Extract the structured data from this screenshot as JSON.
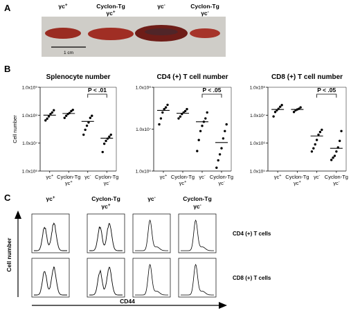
{
  "panels": {
    "a": "A",
    "b": "B",
    "c": "C"
  },
  "panel_a": {
    "labels": [
      {
        "line1": "γc",
        "sup1": "+",
        "line2": "",
        "sup2": ""
      },
      {
        "line1": "Cyclon-Tg",
        "sup1": "",
        "line2": "γc",
        "sup2": "+"
      },
      {
        "line1": "γc",
        "sup1": "-",
        "line2": "",
        "sup2": ""
      },
      {
        "line1": "Cyclon-Tg",
        "sup1": "",
        "line2": "γc",
        "sup2": "-"
      }
    ],
    "scale_bar": "1 cm"
  },
  "group_labels": [
    {
      "line1": "γc",
      "sup1": "+",
      "line2": "",
      "sup2": ""
    },
    {
      "line1": "Cyclon-Tg",
      "sup1": "",
      "line2": "γc",
      "sup2": "+"
    },
    {
      "line1": "γc",
      "sup1": "-",
      "line2": "",
      "sup2": ""
    },
    {
      "line1": "Cyclon-Tg",
      "sup1": "",
      "line2": "γc",
      "sup2": "-"
    }
  ],
  "chart_data": [
    {
      "type": "scatter",
      "title": "Splenocyte number",
      "ylabel": "Cell number",
      "yscale": "log",
      "ylim": [
        1000000,
        1000000000
      ],
      "yticks": [
        "1.0x10⁶",
        "1.0x10⁷",
        "1.0x10⁸",
        "1.0x10⁹"
      ],
      "categories": [
        "γc+",
        "Cyclon-Tg γc+",
        "γc-",
        "Cyclon-Tg γc-"
      ],
      "points": [
        [
          65000000,
          75000000,
          90000000,
          110000000,
          125000000,
          150000000
        ],
        [
          80000000,
          95000000,
          110000000,
          120000000,
          140000000,
          155000000
        ],
        [
          20000000,
          30000000,
          42000000,
          55000000,
          80000000,
          95000000
        ],
        [
          4800000,
          9500000,
          12000000,
          14500000,
          17000000,
          20000000
        ]
      ],
      "medians": [
        100000000,
        115000000,
        60000000,
        15000000
      ],
      "significance": {
        "label": "P < .01",
        "groups": [
          2,
          3
        ]
      }
    },
    {
      "type": "scatter",
      "title": "CD4 (+) T cell number",
      "yscale": "log",
      "ylim": [
        1000000,
        100000000
      ],
      "yticks": [
        "1.0x10⁶",
        "1.0x10⁷",
        "1.0x10⁸"
      ],
      "categories": [
        "γc+",
        "Cyclon-Tg γc+",
        "γc-",
        "Cyclon-Tg γc-"
      ],
      "points": [
        [
          13000000,
          18000000,
          25000000,
          30000000,
          33000000,
          38000000
        ],
        [
          18000000,
          20000000,
          23000000,
          25000000,
          27000000,
          30000000
        ],
        [
          3000000,
          5500000,
          9000000,
          12000000,
          15000000,
          18000000,
          25000000
        ],
        [
          1200000,
          1800000,
          2500000,
          3500000,
          6000000,
          9000000,
          13000000
        ]
      ],
      "medians": [
        28000000,
        24000000,
        15000000,
        4800000
      ],
      "significance": {
        "label": "P < .05",
        "groups": [
          2,
          3
        ]
      }
    },
    {
      "type": "scatter",
      "title": "CD8 (+) T cell number",
      "yscale": "log",
      "ylim": [
        100000,
        100000000
      ],
      "yticks": [
        "1.0x10⁵",
        "1.0x10⁶",
        "1.0x10⁷",
        "1.0x10⁸"
      ],
      "categories": [
        "γc+",
        "Cyclon-Tg γc+",
        "γc-",
        "Cyclon-Tg γc-"
      ],
      "points": [
        [
          9000000,
          13000000,
          15000000,
          17000000,
          20000000,
          23000000
        ],
        [
          13000000,
          15000000,
          16000000,
          17000000,
          19000000
        ],
        [
          500000,
          650000,
          900000,
          1300000,
          2000000,
          2500000,
          3000000
        ],
        [
          250000,
          300000,
          350000,
          500000,
          700000,
          1200000,
          2700000
        ]
      ],
      "medians": [
        16000000,
        16000000,
        1800000,
        650000
      ],
      "significance": {
        "label": "P < .05",
        "groups": [
          2,
          3
        ]
      }
    }
  ],
  "panel_c": {
    "col_labels": [
      {
        "line1": "γc",
        "sup1": "+",
        "line2": "",
        "sup2": ""
      },
      {
        "line1": "Cyclon-Tg",
        "sup1": "",
        "line2": "γc",
        "sup2": "+"
      },
      {
        "line1": "γc",
        "sup1": "-",
        "line2": "",
        "sup2": ""
      },
      {
        "line1": "Cyclon-Tg",
        "sup1": "",
        "line2": "γc",
        "sup2": "-"
      }
    ],
    "row_labels": [
      "CD4 (+) T cells",
      "CD8 (+) T cells"
    ],
    "ylabel": "Cell number",
    "xlabel": "CD44"
  }
}
